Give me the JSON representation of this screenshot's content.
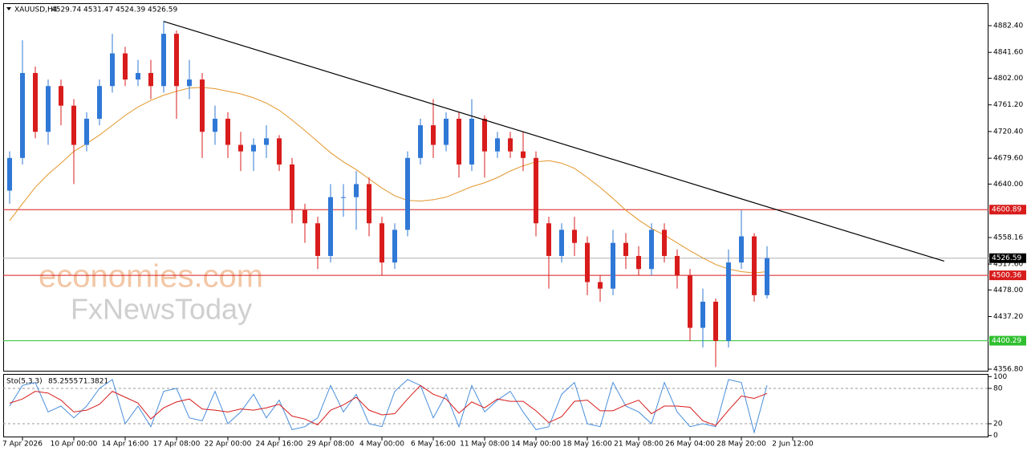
{
  "chart_data": {
    "type": "candlestick",
    "symbol": "XAUUSD,H4",
    "header_values": [
      4529.74,
      4531.47,
      4524.39,
      4526.59
    ],
    "watermark": [
      "economies.com",
      "FxNewsToday"
    ],
    "categories": [
      null,
      "7 Apr 2026",
      null,
      null,
      null,
      "10 Apr 00:00",
      null,
      null,
      null,
      "14 Apr 16:00",
      null,
      null,
      null,
      "17 Apr 08:00",
      null,
      null,
      null,
      "22 Apr 00:00",
      null,
      null,
      null,
      "24 Apr 16:00",
      null,
      null,
      null,
      "29 Apr 08:00",
      null,
      null,
      null,
      "4 May 00:00",
      null,
      null,
      null,
      "6 May 16:00",
      null,
      null,
      null,
      "11 May 08:00",
      null,
      null,
      null,
      "14 May 00:00",
      null,
      null,
      null,
      "18 May 16:00",
      null,
      null,
      null,
      "21 May 08:00",
      null,
      null,
      null,
      "26 May 04:00",
      null,
      null,
      null,
      "28 May 20:00",
      null,
      null,
      null,
      "2 Jun 12:00",
      null
    ],
    "open": [
      4630,
      4680,
      4810,
      4720,
      4790,
      4760,
      4700,
      4740,
      4790,
      4840,
      4800,
      4810,
      4790,
      4870,
      4790,
      4800,
      4720,
      4740,
      4700,
      4690,
      4700,
      4710,
      4670,
      4600,
      4580,
      4530,
      4620,
      4620,
      4640,
      4580,
      4520,
      4570,
      4680,
      4730,
      4700,
      4740,
      4670,
      4740,
      4690,
      4710,
      4690,
      4680,
      4580,
      4530,
      4570,
      4550,
      4490,
      4480,
      4550,
      4530,
      4510,
      4570,
      4530,
      4500,
      4420,
      4460,
      4400,
      4520,
      4560,
      4470,
      null,
      null,
      null
    ],
    "high": [
      4690,
      4860,
      4820,
      4800,
      4800,
      4770,
      4750,
      4800,
      4870,
      4850,
      4830,
      4830,
      4890,
      4875,
      4830,
      4810,
      4760,
      4750,
      4720,
      4710,
      4730,
      4715,
      4680,
      4610,
      4590,
      4640,
      4640,
      4660,
      4650,
      4590,
      4580,
      4690,
      4740,
      4770,
      4750,
      4750,
      4770,
      4745,
      4720,
      4720,
      4720,
      4690,
      4590,
      4580,
      4590,
      4560,
      4500,
      4570,
      4565,
      4545,
      4580,
      4580,
      4540,
      4510,
      4480,
      4465,
      4540,
      4600,
      4565,
      4545,
      null,
      null,
      null
    ],
    "low": [
      4610,
      4670,
      4710,
      4700,
      4730,
      4640,
      4690,
      4730,
      4780,
      4790,
      4790,
      4770,
      4780,
      4740,
      4770,
      4680,
      4700,
      4680,
      4660,
      4660,
      4680,
      4660,
      4580,
      4550,
      4510,
      4520,
      4590,
      4570,
      4560,
      4500,
      4510,
      4560,
      4670,
      4680,
      4690,
      4650,
      4660,
      4650,
      4680,
      4680,
      4660,
      4560,
      4480,
      4520,
      4530,
      4470,
      4460,
      4470,
      4510,
      4500,
      4500,
      4520,
      4480,
      4400,
      4390,
      4360,
      4390,
      4510,
      4460,
      4465,
      null,
      null,
      null
    ],
    "close": [
      4680,
      4810,
      4720,
      4790,
      4760,
      4700,
      4740,
      4790,
      4840,
      4800,
      4810,
      4790,
      4870,
      4790,
      4800,
      4720,
      4740,
      4700,
      4690,
      4700,
      4710,
      4670,
      4600,
      4580,
      4530,
      4620,
      4620,
      4640,
      4580,
      4520,
      4570,
      4680,
      4730,
      4700,
      4740,
      4670,
      4740,
      4690,
      4710,
      4690,
      4680,
      4580,
      4530,
      4570,
      4550,
      4490,
      4480,
      4550,
      4530,
      4510,
      4570,
      4530,
      4500,
      4420,
      4460,
      4400,
      4520,
      4560,
      4470,
      4526.59,
      null,
      null,
      null
    ],
    "colors": {
      "up": "#2f78d6",
      "down": "#d81c1c"
    },
    "ma": {
      "color": "#e2962b",
      "values": [
        4584,
        4610,
        4635,
        4655,
        4672,
        4690,
        4702,
        4715,
        4730,
        4745,
        4758,
        4768,
        4776,
        4782,
        4787,
        4788,
        4786,
        4782,
        4778,
        4772,
        4764,
        4753,
        4738,
        4722,
        4705,
        4688,
        4674,
        4662,
        4648,
        4634,
        4622,
        4615,
        4614,
        4616,
        4620,
        4628,
        4636,
        4642,
        4650,
        4660,
        4668,
        4674,
        4676,
        4672,
        4664,
        4650,
        4635,
        4618,
        4600,
        4585,
        4572,
        4562,
        4550,
        4538,
        4527,
        4517,
        4510,
        4506,
        4504,
        4506,
        null,
        null,
        null
      ]
    },
    "ylim": [
      4353.1,
      4916.8
    ],
    "yticks": [
      {
        "value": 4882.4,
        "label": "4882.40"
      },
      {
        "value": 4841.6,
        "label": "4841.60"
      },
      {
        "value": 4802,
        "label": "4802.00"
      },
      {
        "value": 4761.2,
        "label": "4761.20"
      },
      {
        "value": 4720.4,
        "label": "4720.40"
      },
      {
        "value": 4679.6,
        "label": "4679.60"
      },
      {
        "value": 4640,
        "label": "4640.00"
      },
      {
        "value": 4558.16,
        "label": "4558.16"
      },
      {
        "value": 4517.6,
        "label": "4517.60"
      },
      {
        "value": 4478,
        "label": "4478.00"
      },
      {
        "value": 4437.2,
        "label": "4437.20"
      },
      {
        "value": 4356.8,
        "label": "4356.80"
      }
    ],
    "levels": [
      {
        "value": 4600.89,
        "color": "#d81c1c"
      },
      {
        "value": 4500.36,
        "color": "#d81c1c"
      },
      {
        "value": 4400.29,
        "color": "#2fbf2f"
      }
    ],
    "current_color": "#b0b0b0",
    "trendline": {
      "x": [
        12,
        72.8
      ],
      "y": [
        4889,
        4522
      ],
      "color": "#000000"
    },
    "stochastic": {
      "label": "Sto(5,3,3)",
      "ylim": [
        -3.1,
        104.5
      ],
      "yticks": [
        100,
        80,
        20,
        0
      ],
      "levels": [
        80,
        20
      ],
      "series": [
        {
          "color": "#4a8fdc",
          "values": [
            50,
            85,
            90,
            40,
            50,
            30,
            50,
            80,
            95,
            20,
            50,
            15,
            75,
            80,
            30,
            25,
            75,
            20,
            40,
            70,
            30,
            60,
            10,
            15,
            30,
            85,
            40,
            70,
            20,
            15,
            75,
            95,
            85,
            30,
            70,
            15,
            85,
            40,
            60,
            75,
            40,
            10,
            15,
            70,
            90,
            20,
            15,
            90,
            50,
            40,
            20,
            90,
            40,
            15,
            20,
            15,
            95,
            90,
            5,
            85.2555,
            null,
            null,
            null
          ]
        },
        {
          "color": "#d81c1c",
          "values": [
            55,
            62,
            75,
            72,
            60,
            40,
            43,
            53,
            75,
            65,
            55,
            28,
            47,
            57,
            62,
            45,
            43,
            40,
            45,
            43,
            47,
            53,
            33,
            28,
            18,
            43,
            52,
            65,
            43,
            35,
            37,
            62,
            85,
            70,
            62,
            38,
            57,
            47,
            62,
            58,
            58,
            42,
            22,
            32,
            58,
            60,
            42,
            42,
            52,
            60,
            37,
            50,
            50,
            48,
            25,
            17,
            43,
            67,
            63,
            71.3821,
            null,
            null,
            null
          ]
        }
      ]
    }
  }
}
